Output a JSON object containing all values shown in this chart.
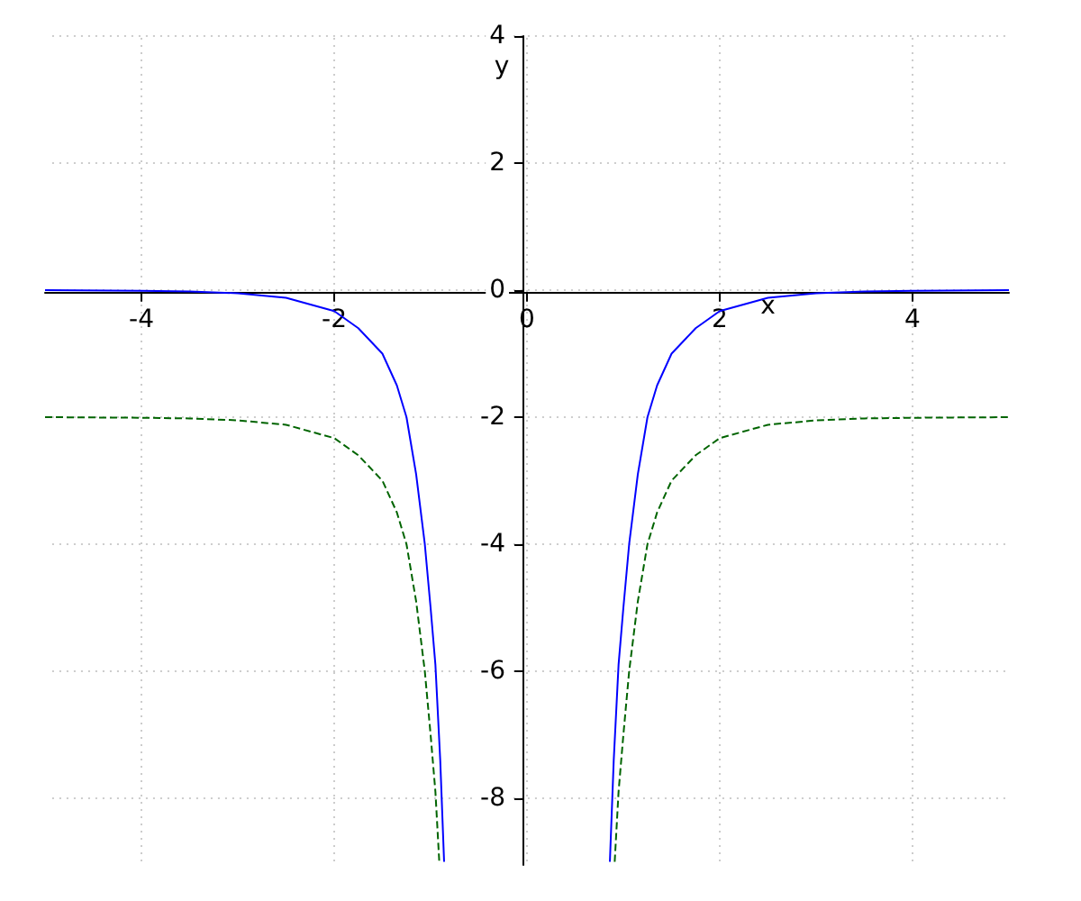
{
  "chart_data": {
    "type": "line",
    "xlabel": "x",
    "ylabel": "y",
    "xlim": [
      -5,
      5
    ],
    "ylim": [
      -9.05,
      4
    ],
    "xticks": [
      -4,
      -2,
      0,
      2,
      4
    ],
    "yticks": [
      -8,
      -6,
      -4,
      -2,
      0,
      2,
      4
    ],
    "grid": true,
    "marker": "none",
    "series": [
      {
        "color": "#0000ff",
        "line_style": "solid",
        "x": [
          -5,
          -4,
          -3.5,
          -3,
          -2.5,
          -2,
          -1.75,
          -1.5,
          -1.35,
          -1.25,
          -1.15,
          -1.06,
          -1,
          -0.95,
          -0.9,
          -0.86,
          0,
          0.86,
          0.9,
          0.95,
          1,
          1.06,
          1.15,
          1.25,
          1.35,
          1.5,
          1.75,
          2,
          2.5,
          3,
          3.5,
          4,
          5
        ],
        "values": [
          0,
          -0.01,
          -0.02,
          -0.05,
          -0.12,
          -0.33,
          -0.6,
          -1,
          -1.5,
          -2,
          -2.9,
          -4,
          -5,
          -5.9,
          -7.4,
          -9,
          null,
          -9,
          -7.4,
          -5.9,
          -5,
          -4,
          -2.9,
          -2,
          -1.5,
          -1,
          -0.6,
          -0.33,
          -0.12,
          -0.05,
          -0.02,
          -0.01,
          0
        ]
      },
      {
        "color": "#006400",
        "line_style": "dashed",
        "x": [
          -5,
          -4,
          -3.5,
          -3,
          -2.5,
          -2,
          -1.75,
          -1.5,
          -1.35,
          -1.25,
          -1.15,
          -1.06,
          -1,
          -0.95,
          -0.91,
          0,
          0.91,
          0.95,
          1,
          1.06,
          1.15,
          1.25,
          1.35,
          1.5,
          1.75,
          2,
          2.5,
          3,
          3.5,
          4,
          5
        ],
        "values": [
          -2,
          -2.01,
          -2.02,
          -2.05,
          -2.12,
          -2.33,
          -2.6,
          -3,
          -3.5,
          -4,
          -4.9,
          -6,
          -7,
          -7.9,
          -9,
          null,
          -9,
          -7.9,
          -7,
          -6,
          -4.9,
          -4,
          -3.5,
          -3,
          -2.6,
          -2.33,
          -2.12,
          -2.05,
          -2.02,
          -2.01,
          -2
        ]
      }
    ]
  }
}
